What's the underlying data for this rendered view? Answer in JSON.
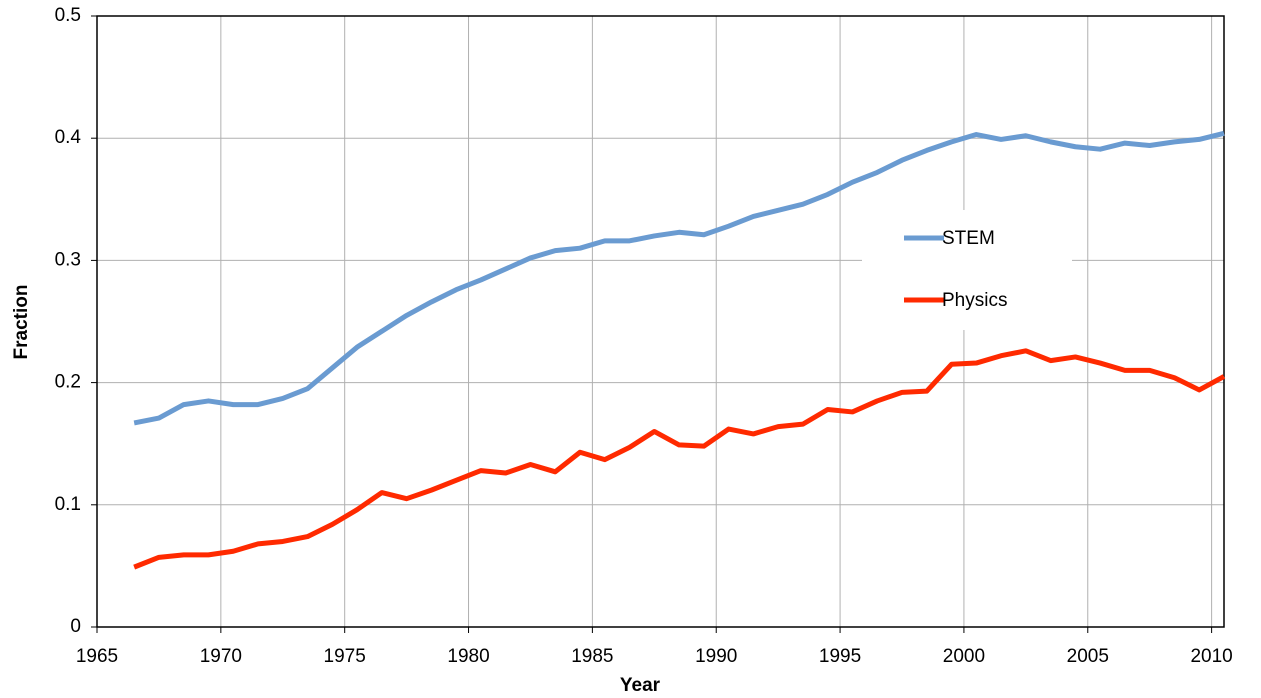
{
  "chart_data": {
    "type": "line",
    "xlabel": "Year",
    "ylabel": "Fraction",
    "x": [
      1966.5,
      1967.5,
      1968.5,
      1969.5,
      1970.5,
      1971.5,
      1972.5,
      1973.5,
      1974.5,
      1975.5,
      1976.5,
      1977.5,
      1978.5,
      1979.5,
      1980.5,
      1981.5,
      1982.5,
      1983.5,
      1984.5,
      1985.5,
      1986.5,
      1987.5,
      1988.5,
      1989.5,
      1990.5,
      1991.5,
      1992.5,
      1993.5,
      1994.5,
      1995.5,
      1996.5,
      1997.5,
      1998.5,
      1999.5,
      2000.5,
      2001.5,
      2002.5,
      2003.5,
      2004.5,
      2005.5,
      2006.5,
      2007.5,
      2008.5,
      2009.5,
      2010.5
    ],
    "series": [
      {
        "name": "STEM",
        "color": "#6a9bd1",
        "values": [
          0.167,
          0.171,
          0.182,
          0.185,
          0.182,
          0.182,
          0.187,
          0.195,
          0.212,
          0.229,
          0.242,
          0.255,
          0.266,
          0.276,
          0.284,
          0.293,
          0.302,
          0.308,
          0.31,
          0.316,
          0.316,
          0.32,
          0.323,
          0.321,
          0.328,
          0.336,
          0.341,
          0.346,
          0.354,
          0.364,
          0.372,
          0.382,
          0.39,
          0.397,
          0.403,
          0.399,
          0.402,
          0.397,
          0.393,
          0.391,
          0.396,
          0.394,
          0.397,
          0.399,
          0.404
        ]
      },
      {
        "name": "Physics",
        "color": "#ff2a00",
        "values": [
          0.049,
          0.057,
          0.059,
          0.059,
          0.062,
          0.068,
          0.07,
          0.074,
          0.084,
          0.096,
          0.11,
          0.105,
          0.112,
          0.12,
          0.128,
          0.126,
          0.133,
          0.127,
          0.143,
          0.137,
          0.147,
          0.16,
          0.149,
          0.148,
          0.162,
          0.158,
          0.164,
          0.166,
          0.178,
          0.176,
          0.185,
          0.192,
          0.193,
          0.215,
          0.216,
          0.222,
          0.226,
          0.218,
          0.221,
          0.216,
          0.21,
          0.21,
          0.204,
          0.194,
          0.205
        ]
      }
    ],
    "xlim": [
      1965,
      2010.5
    ],
    "xticks": [
      1965,
      1970,
      1975,
      1980,
      1985,
      1990,
      1995,
      2000,
      2005,
      2010
    ],
    "ylim": [
      0,
      0.5
    ],
    "yticks": [
      0,
      0.1,
      0.2,
      0.3,
      0.4,
      0.5
    ],
    "grid": true,
    "legend": "center right"
  }
}
